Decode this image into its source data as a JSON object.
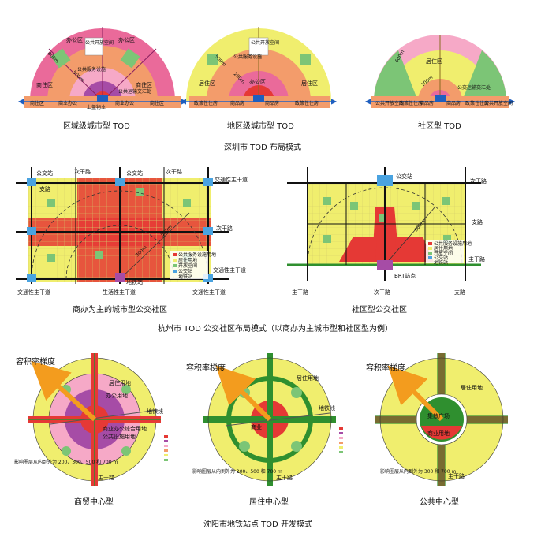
{
  "shenzhen": {
    "section_title": "深圳市 TOD 布局模式",
    "regional": {
      "caption": "区域级城市型 TOD",
      "office_left": "办公区",
      "office_right": "办公区",
      "public_open_space": "公共开放空间",
      "public_service": "公共服务设施",
      "biz_left": "商住区",
      "biz_right": "商住区",
      "transit_hub": "公共运输交汇处",
      "bottom_labels": [
        "商住区",
        "商业办公",
        "上盖物业",
        "商业办公",
        "商住区"
      ],
      "r_800": "800m",
      "r_500": "500m"
    },
    "district": {
      "caption": "地区级城市型 TOD",
      "public_open_space": "公共开放空间",
      "public_service": "公共服务设施",
      "resid_left": "居住区",
      "resid_right": "居住区",
      "office": "办公区",
      "bottom_labels": [
        "政策性住房",
        "商品房",
        "商品房",
        "政策性住房"
      ],
      "r_500": "500m",
      "r_200": "200m"
    },
    "community": {
      "caption": "社区型 TOD",
      "residential": "居住区",
      "transit_hub": "公交运输交汇处",
      "bottom_labels": [
        "公共开放空间",
        "政策性住房",
        "商品房",
        "商品房",
        "政策性住房",
        "公共开放空间"
      ],
      "r_600": "600m",
      "r_100": "100m"
    }
  },
  "hangzhou": {
    "section_title": "杭州市 TOD 公交社区布局模式（以商办为主城市型和社区型为例）",
    "urban": {
      "caption": "商办为主的城市型公交社区",
      "bus_stop_left": "公交站",
      "bus_stop_right": "公交站",
      "secondary_top_left": "次干路",
      "secondary_top_right": "次干路",
      "branch_road": "支路",
      "transit_arterial_tr": "交通性主干道",
      "secondary_right": "次干路",
      "transit_arterial_r": "交通性主干道",
      "life_arterial": "生活性主干道",
      "transit_arterial_bl": "交通性主干道",
      "transit_arterial_br": "交通性主干道",
      "metro_station": "地铁站",
      "r_500": "500m",
      "r_300": "300m",
      "legend": [
        "公共服务设施用地",
        "居住用地",
        "开放空间",
        "公交站",
        "地铁站"
      ]
    },
    "community": {
      "caption": "社区型公交社区",
      "bus_stop": "公交站",
      "secondary_top": "次干路",
      "branch_road": "支路",
      "arterial_right": "主干路",
      "brt_station": "BRT站点",
      "arterial_bl": "主干路",
      "secondary_bottom": "次干路",
      "branch_bottom": "支路",
      "r_500": "500m",
      "legend": [
        "公共服务设施用地",
        "居住用地",
        "开放空间",
        "公交站",
        "地铁站"
      ]
    }
  },
  "shenyang": {
    "section_title": "沈阳市地铁站点 TOD 开发模式",
    "commerce": {
      "caption": "商贸中心型",
      "far_gradient": "容积率梯度",
      "residential": "居住用地",
      "office": "办公用地",
      "mixed_comm": "商业办公综合用地",
      "public_fac": "公共设施用地",
      "metro_line": "地铁线",
      "arterial": "主干路",
      "note": "影响圈层从内到外为 200、300、500 和 700 m"
    },
    "residential": {
      "caption": "居住中心型",
      "far_gradient": "容积率梯度",
      "residential": "居住用地",
      "commercial": "商业",
      "metro_line": "地铁线",
      "arterial": "主干路",
      "note": "影响圈层从内到外为 200、500 和 700 m"
    },
    "public": {
      "caption": "公共中心型",
      "far_gradient": "容积率梯度",
      "residential": "居住用地",
      "plaza": "集散广场",
      "commercial": "商业用地",
      "arterial": "主干路",
      "note": "影响圈层从内到外为 300 和 700 m"
    }
  },
  "colors": {
    "yellow": "#f0ee6e",
    "pink": "#ea6a9a",
    "lpink": "#f6a9c7",
    "orange": "#f39c6b",
    "red": "#e53935",
    "green": "#2f8f2f",
    "lgreen": "#7cc576",
    "purple": "#a64ca6",
    "blue": "#1f5fbf",
    "grey": "#9e9e9e"
  }
}
